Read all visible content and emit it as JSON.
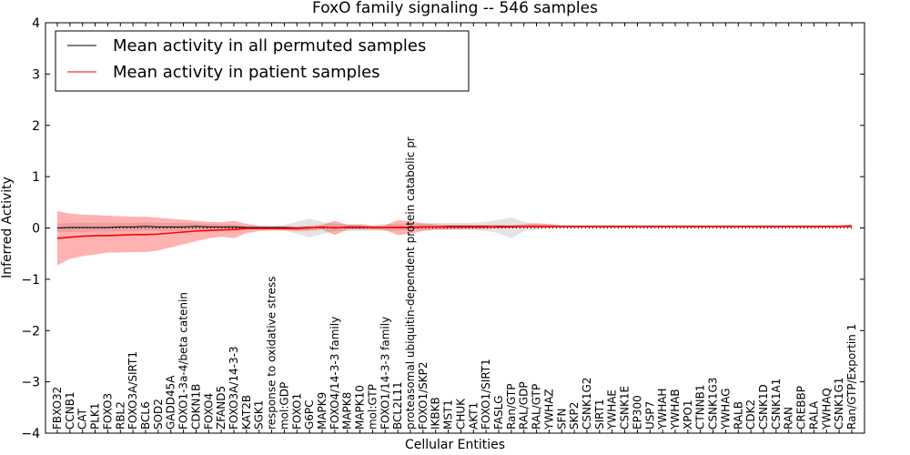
{
  "chart_data": {
    "type": "line",
    "title": "FoxO family signaling -- 546 samples",
    "xlabel": "Cellular Entities",
    "ylabel": "Inferred Activity",
    "ylim": [
      -4,
      4
    ],
    "yticks": [
      -4,
      -3,
      -2,
      -1,
      0,
      1,
      2,
      3,
      4
    ],
    "legend_position": "top-left",
    "categories": [
      "FBXO32",
      "CCNB1",
      "CAT",
      "PLK1",
      "FOXO3",
      "RBL2",
      "FOXO3A/SIRT1",
      "BCL6",
      "SOD2",
      "GADD45A",
      "FOXO1-3a-4/beta catenin",
      "CDKN1B",
      "FOXO4",
      "ZFAND5",
      "FOXO3A/14-3-3",
      "KAT2B",
      "SGK1",
      "response to oxidative stress",
      "mol:GDP",
      "FOXO1",
      "G6PC",
      "MAPK9",
      "FOXO4/14-3-3 family",
      "MAPK8",
      "MAPK10",
      "mol:GTP",
      "FOXO1/14-3-3 family",
      "BCL2L11",
      "proteasomal ubiquitin-dependent protein catabolic pr",
      "FOXO1/SKP2",
      "IKBKB",
      "MST1",
      "CHUK",
      "AKT1",
      "FOXO1/SIRT1",
      "FASLG",
      "Ran/GTP",
      "RAL/GDP",
      "RAL/GTP",
      "YWHAZ",
      "SFN",
      "SKP2",
      "CSNK1G2",
      "SIRT1",
      "YWHAE",
      "CSNK1E",
      "EP300",
      "USP7",
      "YWHAH",
      "YWHAB",
      "XPO1",
      "CTNNB1",
      "CSNK1G3",
      "YWHAG",
      "RALB",
      "CDK2",
      "CSNK1D",
      "CSNK1A1",
      "RAN",
      "CREBBP",
      "RALA",
      "YWHAQ",
      "CSNK1G1",
      "Ran/GTP/Exportin 1"
    ],
    "series": [
      {
        "name": "Mean activity in all permuted samples",
        "color": "#000000",
        "values": [
          0.0,
          0.01,
          0.01,
          0.01,
          0.01,
          0.02,
          0.02,
          0.03,
          0.02,
          0.02,
          0.02,
          0.03,
          0.02,
          0.02,
          0.02,
          0.01,
          0.01,
          0.01,
          0.01,
          0.0,
          0.01,
          0.01,
          0.01,
          0.01,
          0.01,
          0.01,
          0.01,
          0.01,
          0.02,
          0.02,
          0.02,
          0.03,
          0.03,
          0.03,
          0.03,
          0.02,
          0.02,
          0.03,
          0.03,
          0.03,
          0.03,
          0.03,
          0.03,
          0.03,
          0.03,
          0.03,
          0.03,
          0.03,
          0.03,
          0.03,
          0.03,
          0.03,
          0.03,
          0.03,
          0.03,
          0.03,
          0.03,
          0.03,
          0.03,
          0.03,
          0.03,
          0.03,
          0.03,
          0.03
        ],
        "band_upper": [
          0.08,
          0.1,
          0.1,
          0.1,
          0.1,
          0.1,
          0.1,
          0.11,
          0.1,
          0.1,
          0.1,
          0.09,
          0.08,
          0.07,
          0.06,
          0.04,
          0.03,
          0.03,
          0.06,
          0.12,
          0.18,
          0.12,
          0.08,
          0.08,
          0.08,
          0.06,
          0.08,
          0.07,
          0.07,
          0.09,
          0.1,
          0.1,
          0.1,
          0.1,
          0.12,
          0.16,
          0.2,
          0.12,
          0.08,
          0.06,
          0.05,
          0.05,
          0.05,
          0.05,
          0.05,
          0.05,
          0.05,
          0.05,
          0.05,
          0.05,
          0.05,
          0.05,
          0.05,
          0.05,
          0.05,
          0.05,
          0.05,
          0.05,
          0.05,
          0.05,
          0.05,
          0.05,
          0.05,
          0.05
        ],
        "band_lower": [
          -0.08,
          -0.08,
          -0.08,
          -0.07,
          -0.07,
          -0.06,
          -0.06,
          -0.05,
          -0.06,
          -0.06,
          -0.06,
          -0.04,
          -0.04,
          -0.03,
          -0.03,
          -0.02,
          -0.01,
          -0.01,
          -0.04,
          -0.12,
          -0.18,
          -0.12,
          -0.06,
          -0.06,
          -0.06,
          -0.05,
          -0.06,
          -0.05,
          -0.03,
          -0.04,
          -0.04,
          -0.04,
          -0.04,
          -0.04,
          -0.06,
          -0.1,
          -0.2,
          -0.06,
          -0.03,
          -0.01,
          0.0,
          0.0,
          0.0,
          0.0,
          0.0,
          0.0,
          0.0,
          0.0,
          0.0,
          0.0,
          0.0,
          0.0,
          0.0,
          0.0,
          0.0,
          0.0,
          0.0,
          0.0,
          0.0,
          0.0,
          0.0,
          0.0,
          0.0,
          0.0
        ]
      },
      {
        "name": "Mean activity in patient samples",
        "color": "#ff0000",
        "values": [
          -0.2,
          -0.18,
          -0.16,
          -0.15,
          -0.15,
          -0.14,
          -0.13,
          -0.13,
          -0.12,
          -0.1,
          -0.08,
          -0.06,
          -0.05,
          -0.04,
          -0.03,
          -0.01,
          -0.01,
          -0.01,
          -0.01,
          -0.01,
          0.0,
          0.02,
          0.0,
          0.02,
          0.02,
          0.01,
          0.01,
          0.01,
          0.01,
          0.02,
          0.02,
          0.02,
          0.02,
          0.02,
          0.02,
          0.03,
          0.03,
          0.03,
          0.03,
          0.03,
          0.03,
          0.03,
          0.03,
          0.03,
          0.03,
          0.03,
          0.03,
          0.03,
          0.03,
          0.03,
          0.03,
          0.03,
          0.03,
          0.03,
          0.03,
          0.03,
          0.03,
          0.03,
          0.03,
          0.03,
          0.03,
          0.03,
          0.03,
          0.04
        ],
        "band_upper": [
          0.33,
          0.28,
          0.26,
          0.25,
          0.24,
          0.23,
          0.22,
          0.22,
          0.2,
          0.18,
          0.16,
          0.14,
          0.12,
          0.11,
          0.14,
          0.08,
          0.04,
          0.03,
          0.03,
          0.03,
          0.04,
          0.06,
          0.14,
          0.06,
          0.06,
          0.04,
          0.05,
          0.15,
          0.13,
          0.09,
          0.07,
          0.06,
          0.06,
          0.06,
          0.06,
          0.06,
          0.05,
          0.07,
          0.09,
          0.08,
          0.05,
          0.05,
          0.05,
          0.05,
          0.05,
          0.05,
          0.05,
          0.05,
          0.05,
          0.05,
          0.05,
          0.05,
          0.05,
          0.05,
          0.05,
          0.05,
          0.05,
          0.05,
          0.05,
          0.05,
          0.05,
          0.05,
          0.05,
          0.07
        ],
        "band_lower": [
          -0.73,
          -0.6,
          -0.55,
          -0.52,
          -0.48,
          -0.48,
          -0.47,
          -0.47,
          -0.44,
          -0.38,
          -0.32,
          -0.26,
          -0.2,
          -0.17,
          -0.2,
          -0.1,
          -0.06,
          -0.05,
          -0.05,
          -0.06,
          -0.05,
          -0.03,
          -0.14,
          -0.03,
          -0.03,
          -0.03,
          -0.04,
          -0.14,
          -0.11,
          -0.06,
          -0.03,
          -0.03,
          -0.02,
          -0.02,
          -0.02,
          -0.01,
          0.0,
          0.0,
          0.0,
          0.0,
          0.01,
          0.01,
          0.01,
          0.01,
          0.01,
          0.01,
          0.01,
          0.01,
          0.01,
          0.01,
          0.01,
          0.01,
          0.01,
          0.01,
          0.01,
          0.01,
          0.01,
          0.01,
          0.01,
          0.01,
          0.01,
          0.01,
          0.01,
          0.0
        ]
      }
    ]
  }
}
